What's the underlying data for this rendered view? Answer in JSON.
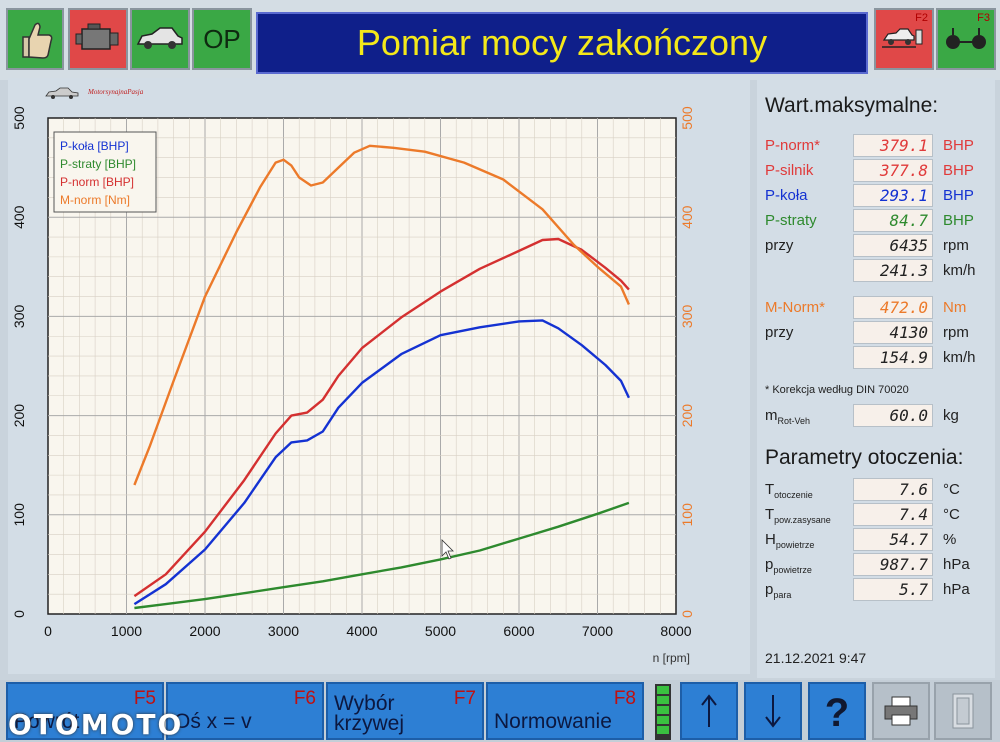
{
  "toolbar": {
    "op_label": "OP",
    "title": "Pomiar mocy zakończony",
    "f2_label": "F2",
    "f3_label": "F3",
    "icons": [
      "thumbs-up-icon",
      "engine-icon",
      "car-icon",
      "op-button",
      "car-on-dyno-icon",
      "wheels-icon"
    ]
  },
  "chart_data": {
    "type": "line",
    "xlabel": "n [rpm]",
    "xlim": [
      0,
      8000
    ],
    "x_ticks": [
      "0",
      "1000",
      "2000",
      "3000",
      "4000",
      "5000",
      "6000",
      "7000",
      "8000"
    ],
    "ylim_left": [
      0,
      500
    ],
    "y_ticks_left": [
      "0",
      "100",
      "200",
      "300",
      "400",
      "500"
    ],
    "ylim_right": [
      0,
      500
    ],
    "y_ticks_right": [
      "0",
      "100",
      "200",
      "300",
      "400",
      "500"
    ],
    "grid": true,
    "legend_position": "top-left",
    "series": [
      {
        "name": "P-koła [BHP]",
        "color": "#1432d2",
        "axis": "left",
        "x": [
          1100,
          1500,
          2000,
          2500,
          2900,
          3100,
          3300,
          3500,
          3700,
          4000,
          4500,
          5000,
          5500,
          6000,
          6300,
          6500,
          6800,
          7100,
          7300,
          7400
        ],
        "y": [
          10,
          30,
          65,
          112,
          158,
          173,
          175,
          184,
          208,
          233,
          262,
          281,
          289,
          295,
          296,
          288,
          271,
          251,
          235,
          218
        ]
      },
      {
        "name": "P-straty [BHP]",
        "color": "#2e8a2e",
        "axis": "left",
        "x": [
          1100,
          1500,
          2000,
          2500,
          3000,
          3500,
          4000,
          4500,
          5000,
          5500,
          6000,
          6500,
          7000,
          7400
        ],
        "y": [
          6,
          10,
          15,
          21,
          27,
          33,
          40,
          47,
          55,
          64,
          76,
          88,
          101,
          112
        ]
      },
      {
        "name": "P-norm [BHP]",
        "color": "#d43030",
        "axis": "left",
        "x": [
          1100,
          1500,
          2000,
          2500,
          2900,
          3100,
          3300,
          3500,
          3700,
          4000,
          4500,
          5000,
          5500,
          6000,
          6300,
          6500,
          6800,
          7100,
          7300,
          7400
        ],
        "y": [
          18,
          40,
          83,
          135,
          182,
          200,
          203,
          216,
          240,
          268,
          299,
          325,
          348,
          366,
          377,
          378,
          367,
          349,
          336,
          327
        ]
      },
      {
        "name": "M-norm [Nm]",
        "color": "#ec7a2a",
        "axis": "right",
        "x": [
          1100,
          1300,
          1600,
          2000,
          2400,
          2700,
          2900,
          3000,
          3100,
          3200,
          3350,
          3500,
          3700,
          3900,
          4100,
          4400,
          4800,
          5300,
          5800,
          6300,
          6700,
          7000,
          7300,
          7400
        ],
        "y": [
          130,
          170,
          235,
          320,
          385,
          430,
          455,
          458,
          452,
          440,
          432,
          435,
          450,
          465,
          472,
          470,
          466,
          455,
          438,
          408,
          372,
          350,
          330,
          312
        ]
      }
    ]
  },
  "chart_logo": "MotorsynajnaPasja",
  "values": {
    "header": "Wart.maksymalne:",
    "rows": [
      {
        "label": "P-norm*",
        "value": "379.1",
        "unit": "BHP",
        "color": "#e03a3a"
      },
      {
        "label": "P-silnik",
        "value": "377.8",
        "unit": "BHP",
        "color": "#e03a3a"
      },
      {
        "label": "P-koła",
        "value": "293.1",
        "unit": "BHP",
        "color": "#1432d2"
      },
      {
        "label": "P-straty",
        "value": "84.7",
        "unit": "BHP",
        "color": "#2e8a2e"
      },
      {
        "label": "przy",
        "value": "6435",
        "unit": "rpm",
        "color": "#222222"
      },
      {
        "label": "",
        "value": "241.3",
        "unit": "km/h",
        "color": "#222222"
      }
    ],
    "torque_rows": [
      {
        "label": "M-Norm*",
        "value": "472.0",
        "unit": "Nm",
        "color": "#ec7a2a"
      },
      {
        "label": "przy",
        "value": "4130",
        "unit": "rpm",
        "color": "#222222"
      },
      {
        "label": "",
        "value": "154.9",
        "unit": "km/h",
        "color": "#222222"
      }
    ],
    "correction_note": "* Korekcja według DIN 70020",
    "mass": {
      "label": "m",
      "sub": "Rot-Veh",
      "value": "60.0",
      "unit": "kg"
    }
  },
  "ambient": {
    "header": "Parametry otoczenia:",
    "rows": [
      {
        "label": "T",
        "sub": "otoczenie",
        "value": "7.6",
        "unit": "°C"
      },
      {
        "label": "T",
        "sub": "pow.zasysane",
        "value": "7.4",
        "unit": "°C"
      },
      {
        "label": "H",
        "sub": "powietrze",
        "value": "54.7",
        "unit": "%"
      },
      {
        "label": "p",
        "sub": "powietrze",
        "value": "987.7",
        "unit": "hPa"
      },
      {
        "label": "p",
        "sub": "para",
        "value": "5.7",
        "unit": "hPa"
      }
    ]
  },
  "datetime": "21.12.2021  9:47",
  "bottom": {
    "f5_text": "Powrót",
    "f5_key": "F5",
    "f6_text": "Oś x = v",
    "f6_key": "F6",
    "f7_text_1": "Wybór",
    "f7_text_2": "krzywej",
    "f7_key": "F7",
    "f8_text": "Normowanie",
    "f8_key": "F8"
  },
  "watermark": "OTOMOTO"
}
